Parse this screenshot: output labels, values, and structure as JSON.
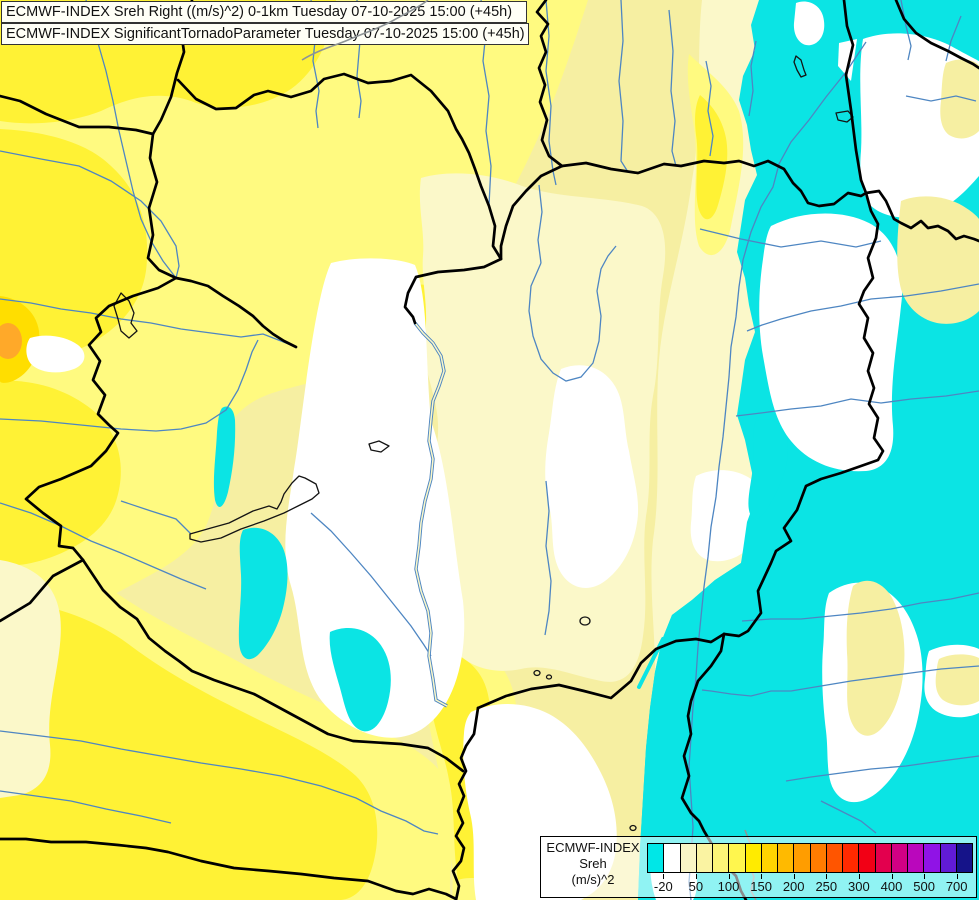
{
  "header": {
    "line1": "ECMWF-INDEX Sreh Right ((m/s)^2) 0-1km Tuesday 07-10-2025 15:00 (+45h)",
    "line2": "ECMWF-INDEX SignificantTornadoParameter Tuesday 07-10-2025 15:00 (+45h)"
  },
  "legend": {
    "title_lines": [
      "ECMWF-INDEX",
      "Sreh",
      "(m/s)^2"
    ],
    "tick_labels": [
      "-20",
      "50",
      "100",
      "150",
      "200",
      "250",
      "300",
      "400",
      "500",
      "700"
    ],
    "cell_colors": [
      "#00E7E7",
      "#FFFFFF",
      "#F9F5C6",
      "#FAF3A2",
      "#FCF578",
      "#FFF64E",
      "#FFEB00",
      "#FFD400",
      "#FFBA00",
      "#FF9D00",
      "#FF7C00",
      "#FF5500",
      "#FF2A00",
      "#F20015",
      "#E3004E",
      "#D10084",
      "#BA07BC",
      "#9013E6",
      "#611BD6",
      "#151389"
    ]
  },
  "map": {
    "colors": {
      "background": "#FBF8C9",
      "pale_yellow": "#F6EFA2",
      "light_yellow": "#FFFA80",
      "yellow": "#FFF235",
      "deep_yellow": "#FFDE00",
      "orange": "#FFA929",
      "white": "#FFFFFF",
      "cyan": "#0BE4E4",
      "river": "#4E86C2",
      "border": "#000000",
      "gray_line": "#8E9496",
      "lake_outline": "#141414"
    }
  }
}
